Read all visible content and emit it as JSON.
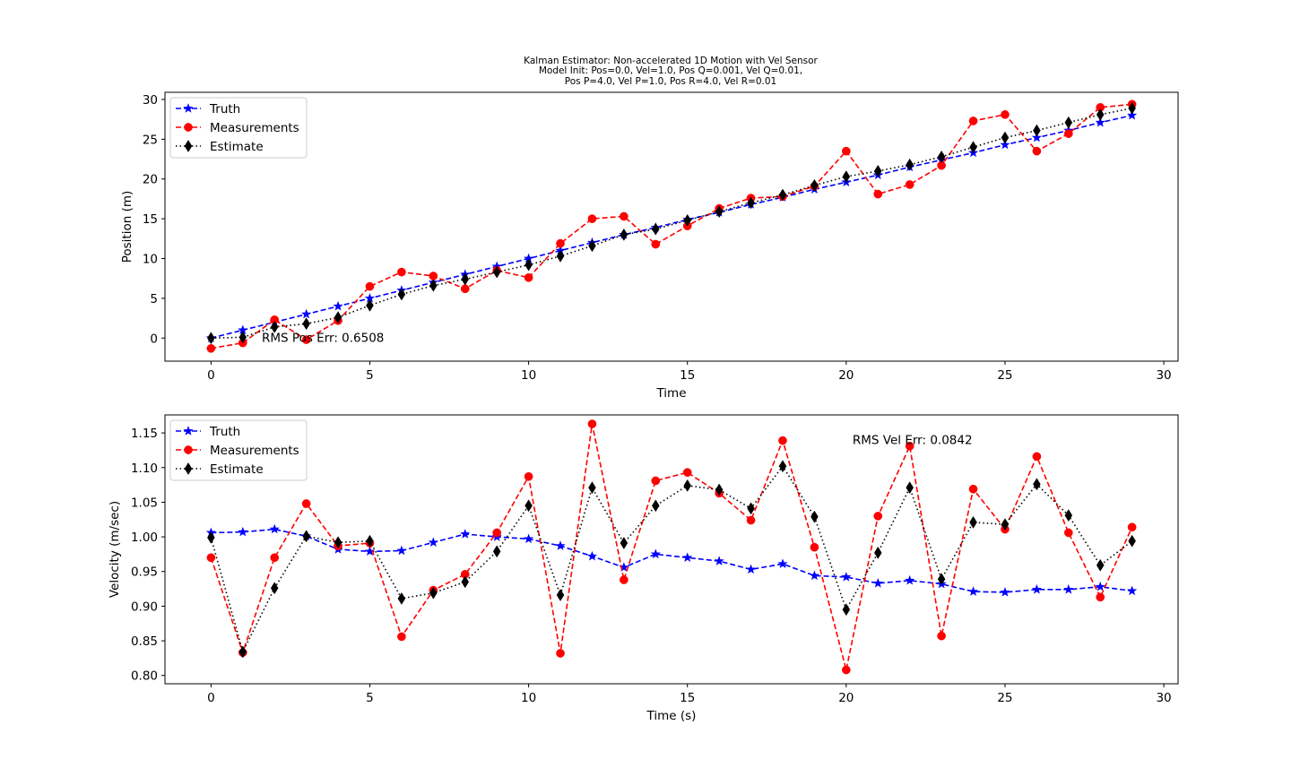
{
  "figure": {
    "title_lines": [
      "Kalman Estimator: Non-accelerated 1D Motion with Vel Sensor",
      "Model Init: Pos=0.0, Vel=1.0, Pos Q=0.001, Vel Q=0.01,",
      "Pos P=4.0, Vel P=1.0, Pos R=4.0, Vel R=0.01"
    ]
  },
  "colors": {
    "truth": "#0000ff",
    "measurements": "#ff0000",
    "estimate": "#000000"
  },
  "chart_data": [
    {
      "type": "line",
      "xlabel": "Time",
      "ylabel": "Position (m)",
      "xlim": [
        -1.45,
        30.45
      ],
      "ylim": [
        -2.9,
        30.9
      ],
      "xticks": [
        0,
        5,
        10,
        15,
        20,
        25,
        30
      ],
      "yticks": [
        0,
        5,
        10,
        15,
        20,
        25,
        30
      ],
      "xtick_labels": [
        "0",
        "5",
        "10",
        "15",
        "20",
        "25",
        "30"
      ],
      "ytick_labels": [
        "0",
        "5",
        "10",
        "15",
        "20",
        "25",
        "30"
      ],
      "annotation": "RMS Pos Err: 0.6508",
      "annotation_pos": [
        1.6,
        -0.5
      ],
      "legend_position": "upper left",
      "x": [
        0,
        1,
        2,
        3,
        4,
        5,
        6,
        7,
        8,
        9,
        10,
        11,
        12,
        13,
        14,
        15,
        16,
        17,
        18,
        19,
        20,
        21,
        22,
        23,
        24,
        25,
        26,
        27,
        28,
        29
      ],
      "series": [
        {
          "name": "Truth",
          "style": "truth",
          "values": [
            0.0,
            1.0,
            2.0,
            3.0,
            4.0,
            5.0,
            6.0,
            7.0,
            8.0,
            9.0,
            10.0,
            11.0,
            12.0,
            13.0,
            13.9,
            14.9,
            15.8,
            16.8,
            17.7,
            18.7,
            19.6,
            20.5,
            21.5,
            22.4,
            23.3,
            24.3,
            25.2,
            26.1,
            27.1,
            28.0
          ]
        },
        {
          "name": "Measurements",
          "style": "measurements",
          "values": [
            -1.3,
            -0.6,
            2.3,
            -0.2,
            2.2,
            6.5,
            8.3,
            7.8,
            6.2,
            8.5,
            7.6,
            11.9,
            15.0,
            15.3,
            11.8,
            14.1,
            16.3,
            17.6,
            17.8,
            19.1,
            23.5,
            18.1,
            19.3,
            21.7,
            27.3,
            28.1,
            23.5,
            25.7,
            29.0,
            29.4
          ]
        },
        {
          "name": "Estimate",
          "style": "estimate",
          "values": [
            0.0,
            0.1,
            1.4,
            1.8,
            2.6,
            4.1,
            5.5,
            6.6,
            7.4,
            8.3,
            9.2,
            10.3,
            11.6,
            13.0,
            13.7,
            14.8,
            15.9,
            17.0,
            18.0,
            19.2,
            20.3,
            21.0,
            21.8,
            22.8,
            24.0,
            25.2,
            26.1,
            27.1,
            28.1,
            28.9
          ]
        }
      ]
    },
    {
      "type": "line",
      "xlabel": "Time (s)",
      "ylabel": "Velocity (m/sec)",
      "xlim": [
        -1.45,
        30.45
      ],
      "ylim": [
        0.788,
        1.176
      ],
      "xticks": [
        0,
        5,
        10,
        15,
        20,
        25,
        30
      ],
      "yticks": [
        0.8,
        0.85,
        0.9,
        0.95,
        1.0,
        1.05,
        1.1,
        1.15
      ],
      "xtick_labels": [
        "0",
        "5",
        "10",
        "15",
        "20",
        "25",
        "30"
      ],
      "ytick_labels": [
        "0.80",
        "0.85",
        "0.90",
        "0.95",
        "1.00",
        "1.05",
        "1.10",
        "1.15"
      ],
      "annotation": "RMS Vel Err: 0.0842",
      "annotation_pos": [
        20.2,
        1.134
      ],
      "legend_position": "upper left",
      "x": [
        0,
        1,
        2,
        3,
        4,
        5,
        6,
        7,
        8,
        9,
        10,
        11,
        12,
        13,
        14,
        15,
        16,
        17,
        18,
        19,
        20,
        21,
        22,
        23,
        24,
        25,
        26,
        27,
        28,
        29
      ],
      "series": [
        {
          "name": "Truth",
          "style": "truth",
          "values": [
            1.006,
            1.007,
            1.011,
            1.001,
            0.982,
            0.979,
            0.98,
            0.992,
            1.004,
            1.0,
            0.997,
            0.987,
            0.972,
            0.956,
            0.975,
            0.97,
            0.965,
            0.953,
            0.961,
            0.944,
            0.942,
            0.933,
            0.937,
            0.932,
            0.921,
            0.92,
            0.924,
            0.924,
            0.928,
            0.922
          ]
        },
        {
          "name": "Measurements",
          "style": "measurements",
          "values": [
            0.97,
            0.833,
            0.97,
            1.048,
            0.987,
            0.991,
            0.856,
            0.923,
            0.946,
            1.006,
            1.087,
            0.832,
            1.163,
            0.938,
            1.081,
            1.093,
            1.063,
            1.024,
            1.139,
            0.985,
            0.808,
            1.03,
            1.131,
            0.857,
            1.069,
            1.011,
            1.116,
            1.006,
            0.913,
            1.014
          ]
        },
        {
          "name": "Estimate",
          "style": "estimate",
          "values": [
            0.999,
            0.834,
            0.926,
            1.001,
            0.992,
            0.994,
            0.911,
            0.919,
            0.935,
            0.979,
            1.045,
            0.916,
            1.071,
            0.991,
            1.045,
            1.074,
            1.068,
            1.041,
            1.102,
            1.029,
            0.895,
            0.977,
            1.071,
            0.939,
            1.021,
            1.018,
            1.076,
            1.031,
            0.959,
            0.994
          ]
        }
      ]
    }
  ]
}
